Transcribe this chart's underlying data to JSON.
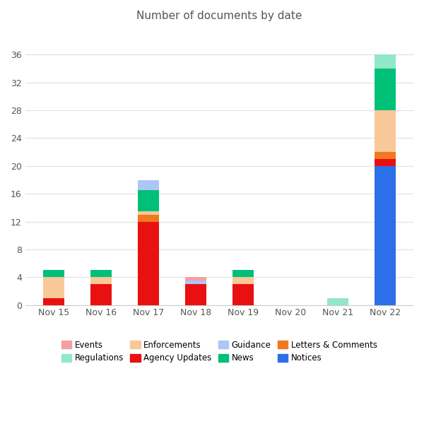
{
  "title": "Number of documents by date",
  "categories": [
    "Nov 15",
    "Nov 16",
    "Nov 17",
    "Nov 18",
    "Nov 19",
    "Nov 20",
    "Nov 21",
    "Nov 22"
  ],
  "series": {
    "Agency Updates": [
      1,
      3,
      12,
      3,
      3,
      0,
      0,
      1
    ],
    "Letters & Comments": [
      0,
      0,
      1,
      0,
      0,
      0,
      0,
      1
    ],
    "Enforcements": [
      3,
      1,
      0.5,
      0,
      1,
      0,
      0,
      6
    ],
    "News": [
      1,
      1,
      3,
      0,
      1,
      0,
      0,
      6
    ],
    "Regulations": [
      0,
      0,
      0,
      0,
      0,
      0,
      1,
      2
    ],
    "Guidance": [
      0,
      0,
      1.5,
      0.5,
      0,
      0,
      0,
      0
    ],
    "Events": [
      0,
      0,
      0,
      0.5,
      0,
      0,
      0,
      0
    ],
    "Notices": [
      0,
      0,
      0,
      0,
      0,
      0,
      0,
      20
    ]
  },
  "colors": {
    "Agency Updates": "#e81010",
    "Letters & Comments": "#f07820",
    "Enforcements": "#f8c898",
    "News": "#00c078",
    "Regulations": "#90e8c8",
    "Guidance": "#aec6f5",
    "Events": "#f4a0a0",
    "Notices": "#2d6fe8"
  },
  "legend_order": [
    "Events",
    "Regulations",
    "Enforcements",
    "Agency Updates",
    "Guidance",
    "News",
    "Letters & Comments",
    "Notices"
  ],
  "plot_order": [
    "Notices",
    "Agency Updates",
    "Letters & Comments",
    "Enforcements",
    "News",
    "Regulations",
    "Guidance",
    "Events"
  ],
  "bar_width": 0.45,
  "ylim": [
    0,
    40
  ],
  "yticks": [
    0,
    4,
    8,
    12,
    16,
    20,
    24,
    28,
    32,
    36
  ],
  "background_color": "#ffffff",
  "grid_color": "#e0e0e0",
  "title_fontsize": 11,
  "tick_fontsize": 9,
  "legend_fontsize": 8.5
}
